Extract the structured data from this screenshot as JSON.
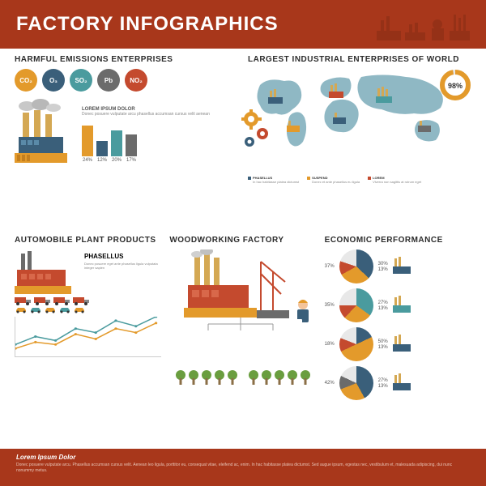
{
  "header": {
    "title": "FACTORY INFOGRAPHICS",
    "bg": "#a8371b"
  },
  "emissions": {
    "title": "HARMFUL EMISSIONS ENTERPRISES",
    "badges": [
      {
        "label": "CO₂",
        "color": "#e39a2b"
      },
      {
        "label": "O₃",
        "color": "#3a5f7a"
      },
      {
        "label": "SO₂",
        "color": "#4a9b9e"
      },
      {
        "label": "Pb",
        "color": "#6b6b6b"
      },
      {
        "label": "NO₂",
        "color": "#c44a2e"
      }
    ],
    "lorem": "LOREM IPSUM DOLOR",
    "body": "Donec posuere vulputate arcu phasellus accumsan cursus velit aenean",
    "bars": [
      {
        "v": 24,
        "c": "#e39a2b"
      },
      {
        "v": 12,
        "c": "#3a5f7a"
      },
      {
        "v": 20,
        "c": "#4a9b9e"
      },
      {
        "v": 17,
        "c": "#6b6b6b"
      }
    ]
  },
  "world": {
    "title": "LARGEST INDUSTRIAL ENTERPRISES OF WORLD",
    "gauge_val": "98%",
    "gauge_color": "#e39a2b",
    "map_color": "#8fb8c4",
    "legend": [
      {
        "c": "#3a5f7a",
        "h": "PHASELLUS",
        "t": "In hac habitasse platea dictumst"
      },
      {
        "c": "#e39a2b",
        "h": "SUSPEND",
        "t": "Donec et ante phasellus eu ligula"
      },
      {
        "c": "#c44a2e",
        "h": "LOREM",
        "t": "Viverra non sagittis at rutrum eget"
      }
    ]
  },
  "auto": {
    "title": "AUTOMOBILE PLANT PRODUCTS",
    "subtitle": "PHASELLUS",
    "txt": "Donec posuere eget ante phasellus ligula vulputata integer sapien",
    "line_colors": [
      "#4a9b9e",
      "#e39a2b"
    ],
    "line1": [
      15,
      25,
      20,
      35,
      30,
      45,
      38,
      50
    ],
    "line2": [
      10,
      18,
      15,
      28,
      22,
      35,
      30,
      42
    ],
    "truck_color": "#c44a2e",
    "car_colors": [
      "#e39a2b",
      "#4a9b9e",
      "#e39a2b",
      "#4a9b9e",
      "#e39a2b"
    ]
  },
  "wood": {
    "title": "WOODWORKING FACTORY",
    "tree_color": "#6a9e3f",
    "trunk_color": "#8b6f47"
  },
  "econ": {
    "title": "ECONOMIC PERFORMANCE",
    "pies": [
      {
        "a": 37,
        "b": 30,
        "c": 13,
        "ca": "#3a5f7a",
        "cb": "#e39a2b",
        "cc": "#c44a2e"
      },
      {
        "a": 35,
        "b": 27,
        "c": 13,
        "ca": "#4a9b9e",
        "cb": "#e39a2b",
        "cc": "#c44a2e"
      },
      {
        "a": 18,
        "b": 50,
        "c": 13,
        "ca": "#3a5f7a",
        "cb": "#e39a2b",
        "cc": "#c44a2e"
      },
      {
        "a": 42,
        "b": 27,
        "c": 13,
        "ca": "#3a5f7a",
        "cb": "#e39a2b",
        "cc": "#6b6b6b"
      }
    ]
  },
  "footer": {
    "title": "Lorem Ipsum Dolor",
    "txt": "Donec posuere vulputate arcu. Phasellus accumsan cursus velit. Aenean leo ligula, porttitor eu, consequat vitae, eleifend ac, enim. In hac habitasse platea dictumst. Sed augue ipsum, egestas nec, vestibulum et, malesuada adipiscing, dui nunc nonummy metus."
  }
}
